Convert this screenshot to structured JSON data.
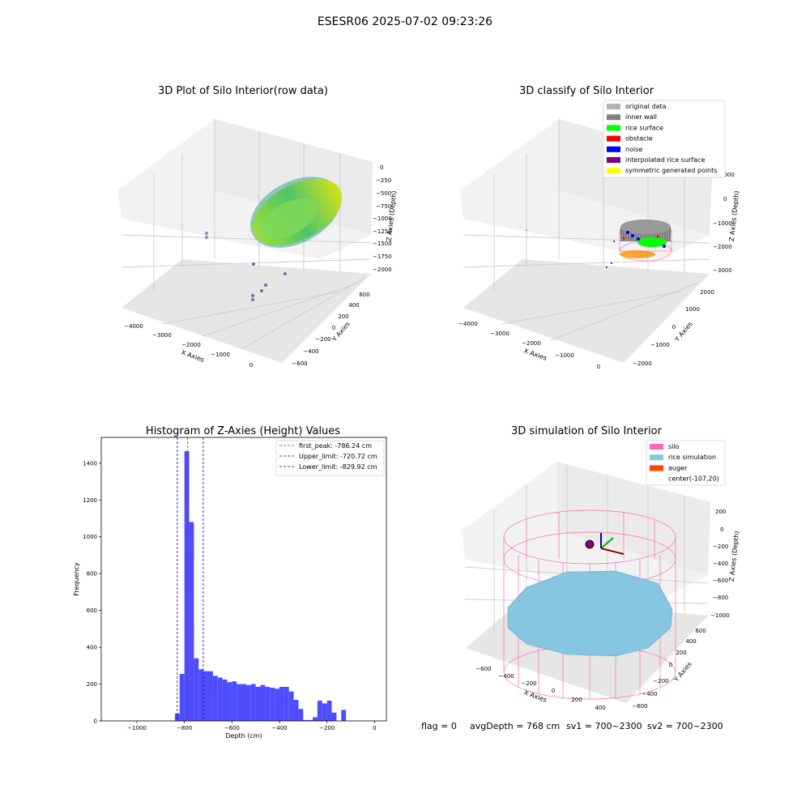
{
  "figure_title": "ESESR06 2025-07-02 09:23:26",
  "footer": {
    "flag": "flag = 0",
    "avg_depth": "avgDepth = 768 cm",
    "sv1": "sv1 = 700~2300",
    "sv2": "sv2 = 700~2300"
  },
  "colors": {
    "hist_bar": "#4d4dff",
    "first_peak_line": "#ff0000",
    "limit_lines": "#0000cc",
    "silo_mesh": "#ff69b4",
    "rice_surface": "#87c6e0",
    "auger": "#ff4500",
    "pane_light": "#f2f2f2",
    "pane_mid": "#ebebeb",
    "pane_dark": "#e6e6e6"
  },
  "chart_data": [
    {
      "type": "scatter3d",
      "title": "3D Plot of Silo Interior(row data)",
      "xlabel": "X Axies",
      "ylabel": "Y Axies",
      "zlabel": "Z Axies (Depth)",
      "x_ticks": [
        "−4000",
        "−3000",
        "−2000",
        "−1000",
        "0"
      ],
      "y_ticks": [
        "−600",
        "−400",
        "−200",
        "0",
        "200",
        "400",
        "600"
      ],
      "z_ticks": [
        "0",
        "−250",
        "−500",
        "−750",
        "−1000",
        "−1250",
        "−1500",
        "−1750",
        "−2000"
      ],
      "grid": true,
      "colormap": "viridis"
    },
    {
      "type": "scatter3d",
      "title": "3D classify of Silo Interior",
      "xlabel": "X Axies",
      "ylabel": "Y Axies",
      "zlabel": "Z Axies (Depth)",
      "x_ticks": [
        "−4000",
        "−3000",
        "−2000",
        "−1000",
        "0"
      ],
      "y_ticks": [
        "−2000",
        "−1000",
        "0",
        "1000",
        "2000"
      ],
      "z_ticks": [
        "1000",
        "0",
        "−1000",
        "−2000",
        "−3000"
      ],
      "grid": true,
      "legend_position": "top-right",
      "legend": [
        {
          "label": "original data",
          "color": "#b3b3b3"
        },
        {
          "label": "inner wall",
          "color": "#808080"
        },
        {
          "label": "rice surface",
          "color": "#00ff00"
        },
        {
          "label": "obstacle",
          "color": "#ff0000"
        },
        {
          "label": "noise",
          "color": "#0000ff"
        },
        {
          "label": "interpolated rice surface",
          "color": "#800080"
        },
        {
          "label": "symmetric generated points",
          "color": "#ffff00"
        }
      ]
    },
    {
      "type": "bar",
      "title": "Histogram of Z-Axies (Height) Values",
      "xlabel": "Depth (cm)",
      "ylabel": "Frequency",
      "xlim": [
        -1150,
        50
      ],
      "ylim": [
        0,
        1540
      ],
      "x_ticks": [
        -1000,
        -800,
        -600,
        -400,
        -200,
        0
      ],
      "y_ticks": [
        0,
        200,
        400,
        600,
        800,
        1000,
        1200,
        1400
      ],
      "x_tick_labels": [
        "−1000",
        "−800",
        "−600",
        "−400",
        "−200",
        "0"
      ],
      "y_tick_labels": [
        "0",
        "200",
        "400",
        "600",
        "800",
        "1000",
        "1200",
        "1400"
      ],
      "bin_start": -840,
      "bin_width": 20,
      "values": [
        40,
        255,
        1465,
        1080,
        340,
        280,
        270,
        270,
        245,
        235,
        225,
        210,
        215,
        200,
        200,
        195,
        200,
        185,
        195,
        185,
        180,
        175,
        185,
        185,
        160,
        115,
        65,
        5,
        5,
        20,
        110,
        95,
        110,
        45,
        0,
        60
      ],
      "legend_position": "top-right",
      "lines": [
        {
          "label": "first_peak: -786.24 cm",
          "x": -786.24,
          "color": "#ff0000"
        },
        {
          "label": "Upper_limit: -720.72 cm",
          "x": -720.72,
          "color": "#0000cc"
        },
        {
          "label": "Lower_limit: -829.92 cm",
          "x": -829.92,
          "color": "#0000cc"
        }
      ]
    },
    {
      "type": "surface3d",
      "title": "3D simulation of Silo Interior",
      "xlabel": "X Axies",
      "ylabel": "Y Axies",
      "zlabel": "Z Axies (Depth)",
      "x_ticks": [
        "−600",
        "−400",
        "−200",
        "0",
        "200",
        "400"
      ],
      "y_ticks": [
        "−600",
        "−400",
        "−200",
        "0",
        "200",
        "400",
        "600"
      ],
      "z_ticks": [
        "200",
        "0",
        "−200",
        "−400",
        "−600",
        "−800",
        "−1000"
      ],
      "grid": true,
      "legend_position": "top-right",
      "legend": [
        {
          "label": "silo",
          "color": "#ff69b4"
        },
        {
          "label": "rice simulation",
          "color": "#87c6e0"
        },
        {
          "label": "auger",
          "color": "#ff4500"
        },
        {
          "label": "center(-107,20)",
          "color": ""
        }
      ]
    }
  ]
}
